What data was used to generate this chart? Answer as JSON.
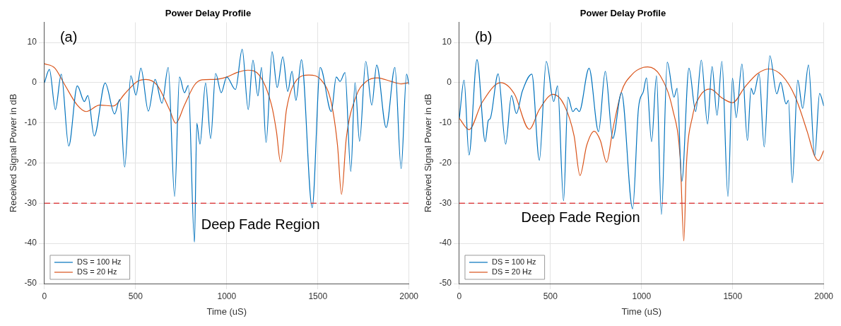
{
  "chart_data": [
    {
      "type": "line",
      "title": "Power Delay Profile",
      "xlabel": "Time (uS)",
      "ylabel": "Received Signal Power in dB",
      "annotations": [
        "(a)",
        "Deep Fade Region"
      ],
      "xlim": [
        0,
        2000
      ],
      "xticks": [
        0,
        500,
        1000,
        1500,
        2000
      ],
      "ylim": [
        -50,
        15
      ],
      "yticks": [
        -50,
        -40,
        -30,
        -20,
        -10,
        0,
        10
      ],
      "grid": true,
      "legend": "bottom left",
      "line_style": "solid",
      "marker": "none",
      "ref_lines": [
        {
          "axis": "y",
          "value": -30,
          "color": "#d62728",
          "line_style": "dashed"
        }
      ],
      "series": [
        {
          "name": "DS = 100 Hz",
          "color": "#0072bd",
          "x": [
            0,
            27,
            60,
            92,
            133,
            180,
            219,
            238,
            273,
            333,
            385,
            413,
            440,
            474,
            502,
            529,
            570,
            607,
            645,
            679,
            714,
            741,
            768,
            789,
            823,
            836,
            853,
            884,
            912,
            939,
            970,
            1000,
            1048,
            1085,
            1118,
            1144,
            1171,
            1191,
            1216,
            1249,
            1277,
            1308,
            1335,
            1358,
            1380,
            1410,
            1469,
            1513,
            1574,
            1601,
            1622,
            1649,
            1681,
            1704,
            1729,
            1763,
            1796,
            1823,
            1875,
            1923,
            1957,
            1987,
            2000
          ],
          "values": [
            0,
            3.3,
            -6.7,
            2.1,
            -15.8,
            -0.8,
            -4.7,
            -3.2,
            -13.3,
            -0.1,
            -7.8,
            -4.2,
            -21,
            1.7,
            -3.1,
            3.6,
            -7.1,
            0.8,
            -5.1,
            3.8,
            -28.3,
            1.4,
            -2.5,
            -0.7,
            -39.7,
            -10.1,
            -15.3,
            -0.1,
            -13.9,
            2.3,
            -2.5,
            1.4,
            -1.7,
            8.3,
            -6.7,
            5.6,
            -3.3,
            3.8,
            -14.9,
            7.7,
            -1.2,
            6.4,
            -2.2,
            2.8,
            -4.4,
            5.7,
            -31.1,
            3.8,
            -7.2,
            1.4,
            0.3,
            2.5,
            -22.1,
            0,
            -14.6,
            5.3,
            -5.6,
            4.4,
            -11.2,
            3.8,
            -21.4,
            2.1,
            -0.5
          ]
        },
        {
          "name": "DS = 20 Hz",
          "color": "#d95319",
          "x": [
            0,
            57,
            112,
            180,
            228,
            303,
            379,
            440,
            509,
            556,
            618,
            686,
            720,
            768,
            823,
            864,
            932,
            1000,
            1055,
            1116,
            1178,
            1246,
            1273,
            1295,
            1328,
            1383,
            1451,
            1519,
            1574,
            1608,
            1630,
            1656,
            1711,
            1766,
            1827,
            1902,
            1957,
            2000
          ],
          "values": [
            4.7,
            3.6,
            -0.6,
            -5.6,
            -7.2,
            -5.6,
            -5.8,
            -2.8,
            0.3,
            0.8,
            -0.6,
            -6.7,
            -10.1,
            -5.6,
            -0.6,
            0.7,
            0.8,
            1.4,
            2.5,
            3.1,
            1.9,
            -5.6,
            -12.2,
            -19.7,
            -6.7,
            0.6,
            1.9,
            0.6,
            -5,
            -15.6,
            -27.8,
            -13.9,
            -3.3,
            0.3,
            1.2,
            0.3,
            -0.3,
            0
          ]
        }
      ]
    },
    {
      "type": "line",
      "title": "Power Delay Profile",
      "xlabel": "Time (uS)",
      "ylabel": "Received Signal Power in dB",
      "annotations": [
        "(b)",
        "Deep Fade Region"
      ],
      "xlim": [
        0,
        2000
      ],
      "xticks": [
        0,
        500,
        1000,
        1500,
        2000
      ],
      "ylim": [
        -50,
        15
      ],
      "yticks": [
        -50,
        -40,
        -30,
        -20,
        -10,
        0,
        10
      ],
      "grid": true,
      "legend": "bottom left",
      "line_style": "solid",
      "marker": "none",
      "ref_lines": [
        {
          "axis": "y",
          "value": -30,
          "color": "#d62728",
          "line_style": "dashed"
        }
      ],
      "series": [
        {
          "name": "DS = 100 Hz",
          "color": "#0072bd",
          "x": [
            0,
            26,
            53,
            97,
            142,
            159,
            170,
            213,
            254,
            286,
            313,
            346,
            398,
            439,
            477,
            518,
            539,
            572,
            596,
            623,
            641,
            658,
            712,
            764,
            801,
            842,
            890,
            951,
            983,
            1010,
            1027,
            1055,
            1082,
            1109,
            1141,
            1178,
            1195,
            1221,
            1260,
            1297,
            1328,
            1362,
            1387,
            1414,
            1441,
            1474,
            1499,
            1519,
            1551,
            1581,
            1601,
            1615,
            1645,
            1673,
            1704,
            1742,
            1763,
            1793,
            1806,
            1827,
            1857,
            1884,
            1916,
            1950,
            1977,
            2000
          ],
          "values": [
            -8.9,
            0.6,
            -18,
            5.7,
            -14.7,
            -9.4,
            -8.9,
            2.2,
            -15.3,
            -3.2,
            -7.7,
            -2.1,
            2.1,
            -19.3,
            5.3,
            -4.7,
            -0.8,
            -29.4,
            -3.6,
            -7.2,
            -6.4,
            -7.2,
            3.6,
            -12.2,
            2.8,
            -13.9,
            -2.5,
            -31.4,
            -6.4,
            -2.2,
            1.2,
            -14.7,
            1.7,
            -32.8,
            5.1,
            -3.6,
            -1.4,
            -24.6,
            3.6,
            -7.2,
            5.6,
            -10.3,
            4,
            -8.1,
            5.3,
            -28.3,
            1.1,
            -8.7,
            4.6,
            -14.4,
            -1.4,
            -2.9,
            2.2,
            -16,
            6.7,
            -2.8,
            0.1,
            -5.3,
            -4.4,
            -24.9,
            0.6,
            -6.4,
            4.4,
            -18.2,
            -2.7,
            -5.8
          ]
        },
        {
          "name": "DS = 20 Hz",
          "color": "#d95319",
          "x": [
            0,
            53,
            124,
            227,
            302,
            384,
            439,
            514,
            576,
            630,
            662,
            699,
            740,
            774,
            808,
            842,
            890,
            945,
            1010,
            1034,
            1103,
            1171,
            1212,
            1232,
            1246,
            1280,
            1321,
            1376,
            1444,
            1499,
            1567,
            1636,
            1697,
            1772,
            1841,
            1909,
            1950,
            1971,
            2000
          ],
          "values": [
            -8.9,
            -11.7,
            -5,
            0,
            -2.8,
            -11.6,
            -6.7,
            -2.9,
            -5.6,
            -13.3,
            -23.1,
            -15.6,
            -12.1,
            -14.4,
            -19.8,
            -11.7,
            -2.2,
            1.9,
            3.8,
            3.9,
            1.7,
            -6.7,
            -18.9,
            -39.4,
            -20.6,
            -8.3,
            -3.3,
            -1.6,
            -3.9,
            -5,
            -1.1,
            2.2,
            3.4,
            1.7,
            -3.3,
            -12.2,
            -18.3,
            -19.4,
            -16.9
          ]
        }
      ]
    }
  ]
}
